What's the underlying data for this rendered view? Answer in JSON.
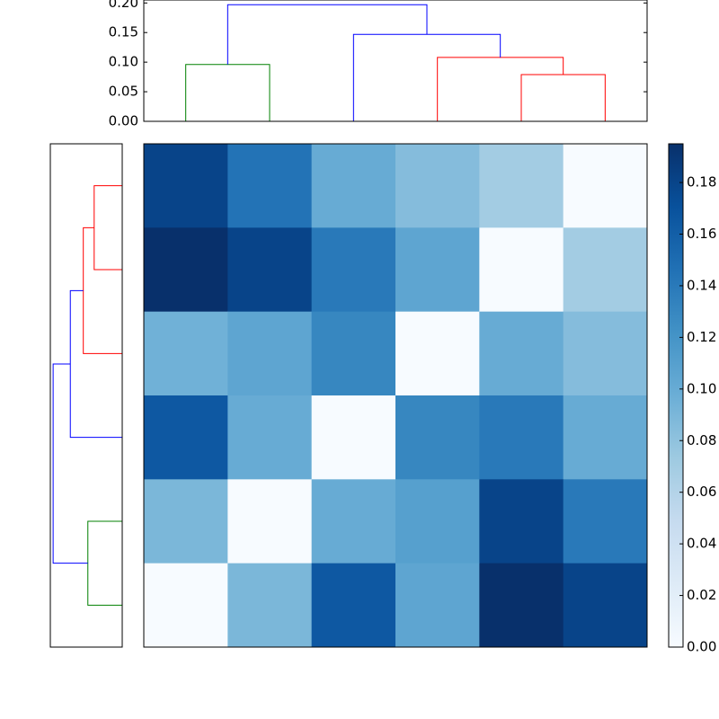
{
  "chart_data": [
    {
      "type": "heatmap",
      "colormap": "Blues",
      "clim": [
        0,
        0.195
      ],
      "values": [
        [
          0.18,
          0.145,
          0.1,
          0.085,
          0.07,
          0
        ],
        [
          0.195,
          0.18,
          0.14,
          0.105,
          0,
          0.07
        ],
        [
          0.095,
          0.105,
          0.13,
          0,
          0.1,
          0.085
        ],
        [
          0.165,
          0.1,
          0,
          0.13,
          0.14,
          0.1
        ],
        [
          0.09,
          0,
          0.1,
          0.11,
          0.18,
          0.14
        ],
        [
          0,
          0.09,
          0.165,
          0.105,
          0.195,
          0.18
        ]
      ],
      "colorbar": {
        "ylim": [
          0,
          0.195
        ],
        "yticks": [
          {
            "value": 0,
            "label": "0.00"
          },
          {
            "value": 0.02,
            "label": "0.02"
          },
          {
            "value": 0.04,
            "label": "0.04"
          },
          {
            "value": 0.06,
            "label": "0.06"
          },
          {
            "value": 0.08,
            "label": "0.08"
          },
          {
            "value": 0.1,
            "label": "0.10"
          },
          {
            "value": 0.12,
            "label": "0.12"
          },
          {
            "value": 0.14,
            "label": "0.14"
          },
          {
            "value": 0.16,
            "label": "0.16"
          },
          {
            "value": 0.18,
            "label": "0.18"
          }
        ]
      }
    },
    {
      "type": "dendrogram",
      "orientation": "top",
      "ylim": [
        0,
        0.205
      ],
      "yticks": [
        {
          "value": 0,
          "label": "0.00"
        },
        {
          "value": 0.05,
          "label": "0.05"
        },
        {
          "value": 0.1,
          "label": "0.10"
        },
        {
          "value": 0.15,
          "label": "0.15"
        },
        {
          "value": 0.2,
          "label": "0.20"
        }
      ],
      "links": [
        {
          "color": "#008000",
          "x": [
            0,
            0,
            1,
            1
          ],
          "heights": [
            0,
            0.096,
            0.096,
            0
          ]
        },
        {
          "color": "#ff0000",
          "x": [
            4,
            4,
            5,
            5
          ],
          "heights": [
            0,
            0.079,
            0.079,
            0
          ]
        },
        {
          "color": "#ff0000",
          "x": [
            3,
            3,
            4.5,
            4.5
          ],
          "heights": [
            0,
            0.108,
            0.108,
            0.079
          ]
        },
        {
          "color": "#0000ff",
          "x": [
            2,
            2,
            3.75,
            3.75
          ],
          "heights": [
            0,
            0.147,
            0.147,
            0.108
          ]
        },
        {
          "color": "#0000ff",
          "x": [
            0.5,
            0.5,
            2.875,
            2.875
          ],
          "heights": [
            0.096,
            0.197,
            0.197,
            0.147
          ]
        }
      ]
    },
    {
      "type": "dendrogram",
      "orientation": "left",
      "xlim": [
        0.205,
        0
      ],
      "links": [
        {
          "color": "#ff0000",
          "x": [
            0,
            0,
            1,
            1
          ],
          "heights": [
            0,
            0.08,
            0.08,
            0
          ]
        },
        {
          "color": "#ff0000",
          "x": [
            0.5,
            0.5,
            2,
            2
          ],
          "heights": [
            0.08,
            0.111,
            0.111,
            0
          ]
        },
        {
          "color": "#008000",
          "x": [
            4,
            4,
            5,
            5
          ],
          "heights": [
            0,
            0.098,
            0.098,
            0
          ]
        },
        {
          "color": "#0000ff",
          "x": [
            1.25,
            1.25,
            3,
            3
          ],
          "heights": [
            0.111,
            0.148,
            0.148,
            0
          ]
        },
        {
          "color": "#0000ff",
          "x": [
            2.125,
            2.125,
            4.5,
            4.5
          ],
          "heights": [
            0.148,
            0.197,
            0.197,
            0.098
          ]
        }
      ]
    }
  ]
}
